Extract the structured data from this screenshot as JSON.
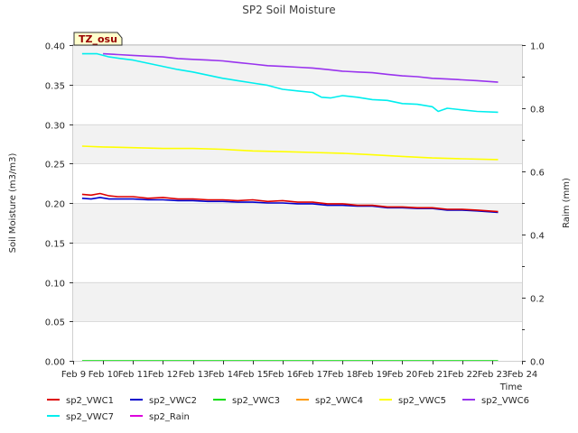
{
  "chart_data": {
    "type": "line",
    "title": "SP2 Soil Moisture",
    "badge": "TZ_osu",
    "xlabel": "Time",
    "ylabel": "Soil Moisture (m3/m3)",
    "y2label": "Raim (mm)",
    "xlim": [
      9,
      24
    ],
    "ylim": [
      0,
      0.4
    ],
    "y2lim": [
      0,
      1.0
    ],
    "x_tick_labels": [
      "Feb 9",
      "Feb 10",
      "Feb 11",
      "Feb 12",
      "Feb 13",
      "Feb 14",
      "Feb 15",
      "Feb 16",
      "Feb 17",
      "Feb 18",
      "Feb 19",
      "Feb 20",
      "Feb 21",
      "Feb 22",
      "Feb 23",
      "Feb 24"
    ],
    "x_ticks": [
      9,
      10,
      11,
      12,
      13,
      14,
      15,
      16,
      17,
      18,
      19,
      20,
      21,
      22,
      23,
      24
    ],
    "y_ticks": [
      0.0,
      0.05,
      0.1,
      0.15,
      0.2,
      0.25,
      0.3,
      0.35,
      0.4
    ],
    "y_tick_labels": [
      "0.00",
      "0.05",
      "0.10",
      "0.15",
      "0.20",
      "0.25",
      "0.30",
      "0.35",
      "0.40"
    ],
    "y2_ticks": [
      0.0,
      0.2,
      0.4,
      0.6,
      0.8,
      1.0
    ],
    "y2_tick_labels": [
      "0.0",
      "0.2",
      "0.4",
      "0.6",
      "0.8",
      "1.0"
    ],
    "y2_minor_ticks": [
      0.1,
      0.3,
      0.5,
      0.7,
      0.9
    ],
    "band_color": "#f2f2f2",
    "grid": true,
    "legend_position": "bottom",
    "series": [
      {
        "name": "sp2_VWC1",
        "color": "#dd0000",
        "axis": "left",
        "x": [
          9.3,
          9.6,
          9.9,
          10.2,
          10.5,
          11.0,
          11.5,
          12.0,
          12.5,
          13.0,
          13.5,
          14.0,
          14.5,
          15.0,
          15.5,
          16.0,
          16.5,
          17.0,
          17.5,
          18.0,
          18.5,
          19.0,
          19.5,
          20.0,
          20.5,
          21.0,
          21.5,
          22.0,
          22.5,
          23.2
        ],
        "y": [
          0.211,
          0.21,
          0.212,
          0.209,
          0.208,
          0.208,
          0.206,
          0.207,
          0.205,
          0.205,
          0.204,
          0.204,
          0.203,
          0.204,
          0.202,
          0.203,
          0.201,
          0.201,
          0.199,
          0.199,
          0.197,
          0.197,
          0.195,
          0.195,
          0.194,
          0.194,
          0.192,
          0.192,
          0.191,
          0.189
        ]
      },
      {
        "name": "sp2_VWC2",
        "color": "#0000cc",
        "axis": "left",
        "x": [
          9.3,
          9.6,
          9.9,
          10.2,
          10.5,
          11.0,
          11.5,
          12.0,
          12.5,
          13.0,
          13.5,
          14.0,
          14.5,
          15.0,
          15.5,
          16.0,
          16.5,
          17.0,
          17.5,
          18.0,
          18.5,
          19.0,
          19.5,
          20.0,
          20.5,
          21.0,
          21.5,
          22.0,
          22.5,
          23.2
        ],
        "y": [
          0.206,
          0.205,
          0.207,
          0.205,
          0.205,
          0.205,
          0.204,
          0.204,
          0.203,
          0.203,
          0.202,
          0.202,
          0.201,
          0.201,
          0.2,
          0.2,
          0.199,
          0.199,
          0.197,
          0.197,
          0.196,
          0.196,
          0.194,
          0.194,
          0.193,
          0.193,
          0.191,
          0.191,
          0.19,
          0.188
        ]
      },
      {
        "name": "sp2_VWC3",
        "color": "#00dd00",
        "axis": "left",
        "x": [
          9.3,
          23.2
        ],
        "y": [
          0.0,
          0.0
        ]
      },
      {
        "name": "sp2_VWC4",
        "color": "#ff9900",
        "axis": "left",
        "x": [],
        "y": []
      },
      {
        "name": "sp2_VWC5",
        "color": "#ffff00",
        "axis": "left",
        "x": [
          9.3,
          10.0,
          11.0,
          12.0,
          13.0,
          14.0,
          15.0,
          16.0,
          17.0,
          18.0,
          19.0,
          20.0,
          21.0,
          22.0,
          23.2
        ],
        "y": [
          0.272,
          0.271,
          0.27,
          0.269,
          0.269,
          0.268,
          0.266,
          0.265,
          0.264,
          0.263,
          0.261,
          0.259,
          0.257,
          0.256,
          0.255
        ]
      },
      {
        "name": "sp2_VWC6",
        "color": "#9933ee",
        "axis": "left",
        "x": [
          10.0,
          10.5,
          11.0,
          11.5,
          12.0,
          12.5,
          13.0,
          13.5,
          14.0,
          14.5,
          15.0,
          15.5,
          16.0,
          16.5,
          17.0,
          17.5,
          18.0,
          18.5,
          19.0,
          19.5,
          20.0,
          20.5,
          21.0,
          21.5,
          22.0,
          22.5,
          23.2
        ],
        "y": [
          0.389,
          0.388,
          0.387,
          0.386,
          0.385,
          0.383,
          0.382,
          0.381,
          0.38,
          0.378,
          0.376,
          0.374,
          0.373,
          0.372,
          0.371,
          0.369,
          0.367,
          0.366,
          0.365,
          0.363,
          0.361,
          0.36,
          0.358,
          0.357,
          0.356,
          0.355,
          0.353
        ]
      },
      {
        "name": "sp2_VWC7",
        "color": "#00eeee",
        "axis": "left",
        "x": [
          9.3,
          9.8,
          10.2,
          10.6,
          11.0,
          11.5,
          12.0,
          12.5,
          13.0,
          13.5,
          14.0,
          14.5,
          15.0,
          15.5,
          16.0,
          16.5,
          17.0,
          17.3,
          17.6,
          18.0,
          18.5,
          19.0,
          19.5,
          20.0,
          20.5,
          21.0,
          21.2,
          21.5,
          22.0,
          22.5,
          23.2
        ],
        "y": [
          0.389,
          0.389,
          0.385,
          0.383,
          0.381,
          0.377,
          0.373,
          0.369,
          0.366,
          0.362,
          0.358,
          0.355,
          0.352,
          0.349,
          0.344,
          0.342,
          0.34,
          0.334,
          0.333,
          0.336,
          0.334,
          0.331,
          0.33,
          0.326,
          0.325,
          0.322,
          0.316,
          0.32,
          0.318,
          0.316,
          0.315
        ]
      },
      {
        "name": "sp2_Rain",
        "color": "#dd00dd",
        "axis": "right",
        "x": [],
        "y": []
      }
    ]
  }
}
